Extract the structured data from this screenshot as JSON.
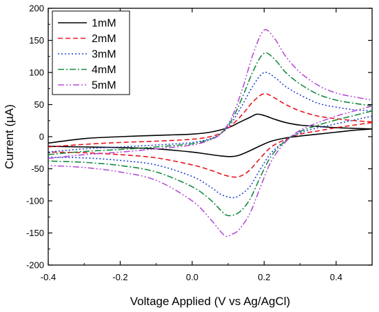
{
  "chart_data": {
    "type": "line",
    "title": "",
    "xlabel": "Voltage Applied (V vs Ag/AgCl)",
    "ylabel": "Current (µA)",
    "xlim": [
      -0.4,
      0.5
    ],
    "ylim": [
      -200,
      200
    ],
    "xticks": [
      -0.4,
      -0.2,
      0.0,
      0.2,
      0.4
    ],
    "xtick_labels": [
      "-0.4",
      "-0.2",
      "0.0",
      "0.2",
      "0.4"
    ],
    "yticks": [
      -200,
      -150,
      -100,
      -50,
      0,
      50,
      100,
      150,
      200
    ],
    "ytick_labels": [
      "-200",
      "-150",
      "-100",
      "-50",
      "0",
      "50",
      "100",
      "150",
      "200"
    ],
    "grid": false,
    "legend_position": "top-left",
    "series": [
      {
        "name": "1mM",
        "color": "#000000",
        "dash": "solid",
        "forward": {
          "x": [
            -0.4,
            -0.3,
            -0.2,
            -0.1,
            0.0,
            0.05,
            0.1,
            0.13,
            0.16,
            0.18,
            0.2,
            0.23,
            0.26,
            0.3,
            0.35,
            0.4,
            0.45,
            0.5
          ],
          "y": [
            -10,
            -3,
            0,
            2,
            4,
            7,
            14,
            22,
            30,
            35,
            33,
            27,
            22,
            18,
            16,
            14,
            13,
            12
          ]
        },
        "reverse": {
          "x": [
            0.5,
            0.45,
            0.4,
            0.35,
            0.3,
            0.26,
            0.22,
            0.19,
            0.16,
            0.13,
            0.11,
            0.08,
            0.04,
            0.0,
            -0.1,
            -0.2,
            -0.3,
            -0.4
          ],
          "y": [
            12,
            10,
            7,
            4,
            1,
            -2,
            -7,
            -14,
            -22,
            -29,
            -31,
            -30,
            -27,
            -24,
            -19,
            -17,
            -16,
            -15
          ]
        }
      },
      {
        "name": "2mM",
        "color": "#e8141c",
        "dash": "dashed",
        "forward": {
          "x": [
            -0.4,
            -0.3,
            -0.2,
            -0.1,
            0.0,
            0.05,
            0.08,
            0.11,
            0.14,
            0.17,
            0.2,
            0.23,
            0.26,
            0.3,
            0.35,
            0.4,
            0.45,
            0.5
          ],
          "y": [
            -16,
            -12,
            -9,
            -7,
            -4,
            0,
            6,
            18,
            35,
            55,
            67,
            60,
            50,
            40,
            32,
            28,
            25,
            23
          ]
        },
        "reverse": {
          "x": [
            0.5,
            0.45,
            0.4,
            0.35,
            0.3,
            0.26,
            0.22,
            0.19,
            0.16,
            0.14,
            0.12,
            0.09,
            0.05,
            0.0,
            -0.1,
            -0.2,
            -0.3,
            -0.4
          ],
          "y": [
            22,
            18,
            14,
            9,
            4,
            -4,
            -16,
            -33,
            -52,
            -60,
            -63,
            -60,
            -52,
            -44,
            -33,
            -28,
            -25,
            -24
          ]
        }
      },
      {
        "name": "3mM",
        "color": "#1f3fd6",
        "dash": "dotted",
        "forward": {
          "x": [
            -0.4,
            -0.3,
            -0.2,
            -0.1,
            0.0,
            0.05,
            0.08,
            0.11,
            0.14,
            0.17,
            0.2,
            0.23,
            0.26,
            0.3,
            0.35,
            0.4,
            0.45,
            0.5
          ],
          "y": [
            -24,
            -19,
            -16,
            -13,
            -9,
            -3,
            5,
            22,
            50,
            80,
            100,
            92,
            78,
            65,
            52,
            46,
            42,
            40
          ]
        },
        "reverse": {
          "x": [
            0.5,
            0.45,
            0.4,
            0.35,
            0.3,
            0.26,
            0.22,
            0.19,
            0.16,
            0.13,
            0.11,
            0.08,
            0.05,
            0.0,
            -0.1,
            -0.2,
            -0.3,
            -0.4
          ],
          "y": [
            32,
            26,
            20,
            14,
            6,
            -6,
            -25,
            -50,
            -78,
            -92,
            -95,
            -90,
            -78,
            -62,
            -44,
            -37,
            -33,
            -32
          ]
        }
      },
      {
        "name": "4mM",
        "color": "#16893d",
        "dash": "dash-dot",
        "forward": {
          "x": [
            -0.4,
            -0.3,
            -0.2,
            -0.1,
            0.0,
            0.05,
            0.08,
            0.11,
            0.14,
            0.17,
            0.2,
            0.23,
            0.26,
            0.3,
            0.35,
            0.4,
            0.45,
            0.5
          ],
          "y": [
            -28,
            -23,
            -20,
            -16,
            -11,
            -4,
            5,
            26,
            62,
            103,
            130,
            120,
            100,
            82,
            66,
            57,
            52,
            48
          ]
        },
        "reverse": {
          "x": [
            0.5,
            0.45,
            0.4,
            0.35,
            0.3,
            0.26,
            0.22,
            0.19,
            0.16,
            0.13,
            0.1,
            0.08,
            0.05,
            0.0,
            -0.1,
            -0.2,
            -0.3,
            -0.4
          ],
          "y": [
            40,
            33,
            26,
            18,
            8,
            -6,
            -30,
            -62,
            -98,
            -118,
            -123,
            -115,
            -98,
            -78,
            -55,
            -45,
            -40,
            -38
          ]
        }
      },
      {
        "name": "5mM",
        "color": "#b44fd6",
        "dash": "dash-dot-dot",
        "forward": {
          "x": [
            -0.4,
            -0.3,
            -0.2,
            -0.1,
            0.0,
            0.05,
            0.08,
            0.11,
            0.14,
            0.17,
            0.2,
            0.23,
            0.26,
            0.3,
            0.35,
            0.4,
            0.45,
            0.5
          ],
          "y": [
            -34,
            -28,
            -24,
            -19,
            -13,
            -5,
            5,
            30,
            75,
            130,
            166,
            152,
            125,
            100,
            80,
            68,
            62,
            57
          ]
        },
        "reverse": {
          "x": [
            0.5,
            0.45,
            0.4,
            0.35,
            0.3,
            0.26,
            0.22,
            0.19,
            0.16,
            0.13,
            0.11,
            0.09,
            0.05,
            0.0,
            -0.1,
            -0.2,
            -0.3,
            -0.4
          ],
          "y": [
            48,
            40,
            32,
            22,
            10,
            -8,
            -38,
            -78,
            -120,
            -145,
            -152,
            -154,
            -128,
            -100,
            -68,
            -55,
            -48,
            -45
          ]
        }
      }
    ]
  }
}
